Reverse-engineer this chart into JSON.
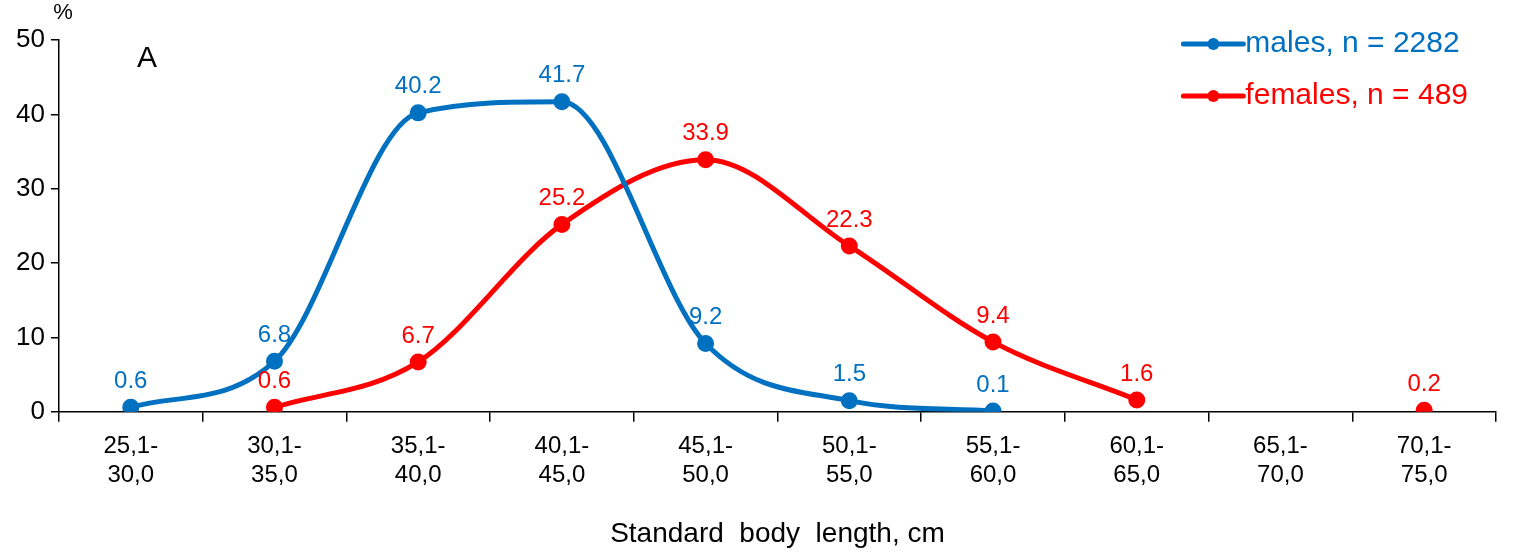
{
  "chart_data": {
    "type": "line",
    "xlabel": "Standard  body  length, cm",
    "ylabel": "%",
    "annotations": [
      "A"
    ],
    "categories": [
      "25,1-30,0",
      "30,1-35,0",
      "35,1-40,0",
      "40,1-45,0",
      "45,1-50,0",
      "50,1-55,0",
      "55,1-60,0",
      "60,1-65,0",
      "65,1-70,0",
      "70,1-75,0"
    ],
    "series": [
      {
        "name": "males, n = 2282",
        "color": "#0070c0",
        "values": [
          0.6,
          6.8,
          40.2,
          41.7,
          9.2,
          1.5,
          0.1,
          null,
          null,
          null
        ]
      },
      {
        "name": "females, n = 489",
        "color": "#ff0000",
        "values": [
          null,
          0.6,
          6.7,
          25.2,
          33.9,
          22.3,
          9.4,
          1.6,
          null,
          0.2
        ]
      }
    ],
    "ylim": [
      0,
      50
    ],
    "yticks": [
      0,
      10,
      20,
      30,
      40,
      50
    ],
    "grid": false,
    "legend": "top right",
    "marker": "circle",
    "line_style": "solid",
    "data_labels": true
  }
}
